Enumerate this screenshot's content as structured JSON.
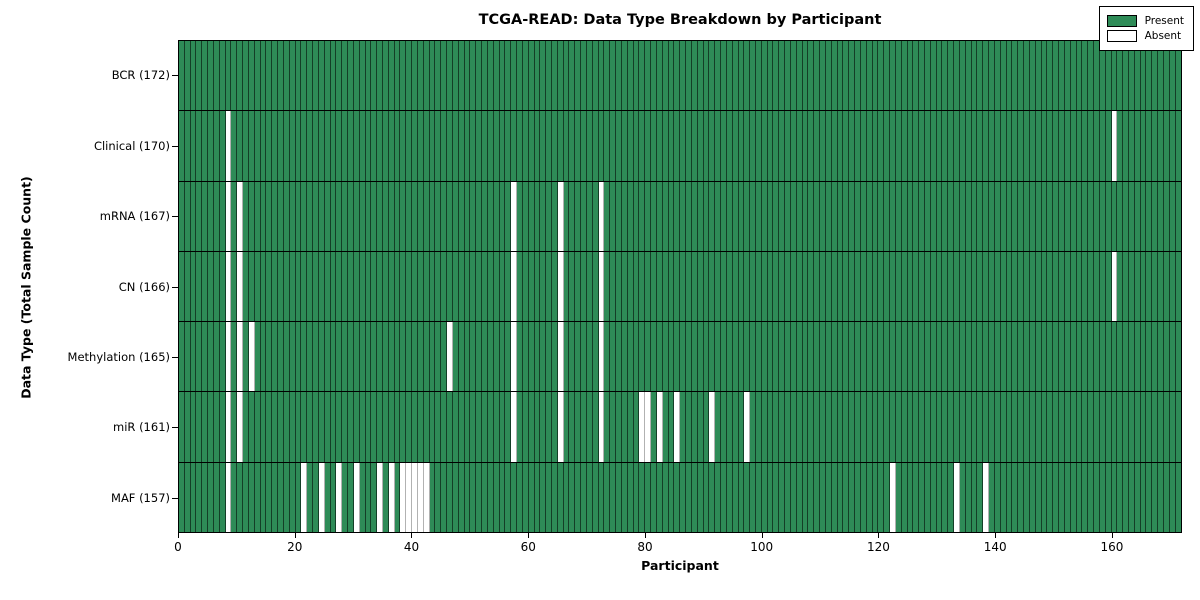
{
  "chart_data": {
    "type": "heatmap",
    "title": "TCGA-READ: Data Type Breakdown by Participant",
    "xlabel": "Participant",
    "ylabel": "Data Type (Total Sample Count)",
    "n_participants": 172,
    "x_ticks": [
      0,
      20,
      40,
      60,
      80,
      100,
      120,
      140,
      160
    ],
    "x_range": [
      0,
      172
    ],
    "grid": "cell-borders",
    "legend_position": "upper-right-inside",
    "legend": [
      {
        "label": "Present",
        "color": "#2e8b57"
      },
      {
        "label": "Absent",
        "color": "#ffffff"
      }
    ],
    "colors": {
      "present": "#2e8b57",
      "absent": "#ffffff",
      "cell_edge": "#000000"
    },
    "rows": [
      {
        "label": "BCR (172)",
        "data_type": "BCR",
        "present_count": 172,
        "absent_participants": []
      },
      {
        "label": "Clinical (170)",
        "data_type": "Clinical",
        "present_count": 170,
        "absent_participants": [
          8,
          160
        ]
      },
      {
        "label": "mRNA (167)",
        "data_type": "mRNA",
        "present_count": 167,
        "absent_participants": [
          8,
          10,
          57,
          65,
          72
        ]
      },
      {
        "label": "CN (166)",
        "data_type": "CN",
        "present_count": 166,
        "absent_participants": [
          8,
          10,
          57,
          65,
          72,
          160
        ]
      },
      {
        "label": "Methylation (165)",
        "data_type": "Methylation",
        "present_count": 165,
        "absent_participants": [
          8,
          10,
          12,
          46,
          57,
          65,
          72
        ]
      },
      {
        "label": "miR (161)",
        "data_type": "miR",
        "present_count": 161,
        "absent_participants": [
          8,
          10,
          57,
          65,
          72,
          79,
          80,
          82,
          85,
          91,
          97
        ]
      },
      {
        "label": "MAF (157)",
        "data_type": "MAF",
        "present_count": 157,
        "absent_participants": [
          8,
          21,
          24,
          27,
          30,
          34,
          36,
          38,
          39,
          40,
          41,
          42,
          122,
          133,
          138
        ]
      }
    ]
  }
}
